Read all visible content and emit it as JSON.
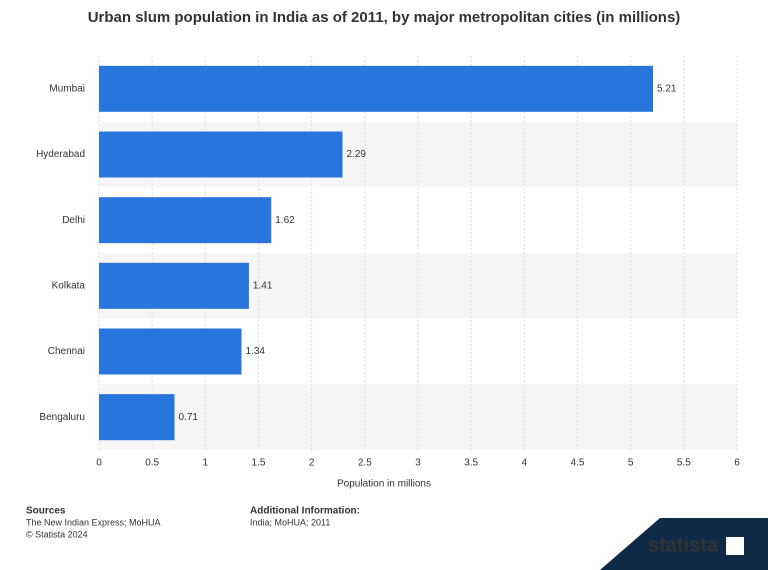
{
  "chart_data": {
    "type": "bar",
    "orientation": "horizontal",
    "title": "Urban slum population in India as of 2011, by major metropolitan cities (in millions)",
    "categories": [
      "Mumbai",
      "Hyderabad",
      "Delhi",
      "Kolkata",
      "Chennai",
      "Bengaluru"
    ],
    "values": [
      5.21,
      2.29,
      1.62,
      1.41,
      1.34,
      0.71
    ],
    "color": "#2876dd",
    "xlim": [
      0,
      6
    ],
    "xticks": [
      0,
      0.5,
      1,
      1.5,
      2,
      2.5,
      3,
      3.5,
      4,
      4.5,
      5,
      5.5,
      6
    ],
    "xlabel": "Population in millions",
    "grid": true
  },
  "footer": {
    "sources_title": "Sources",
    "sources": "The New Indian Express; MoHUA",
    "copyright": "© Statista 2024",
    "info_title": "Additional Information:",
    "info": "India; MoHUA; 2011",
    "logo": "statista"
  }
}
